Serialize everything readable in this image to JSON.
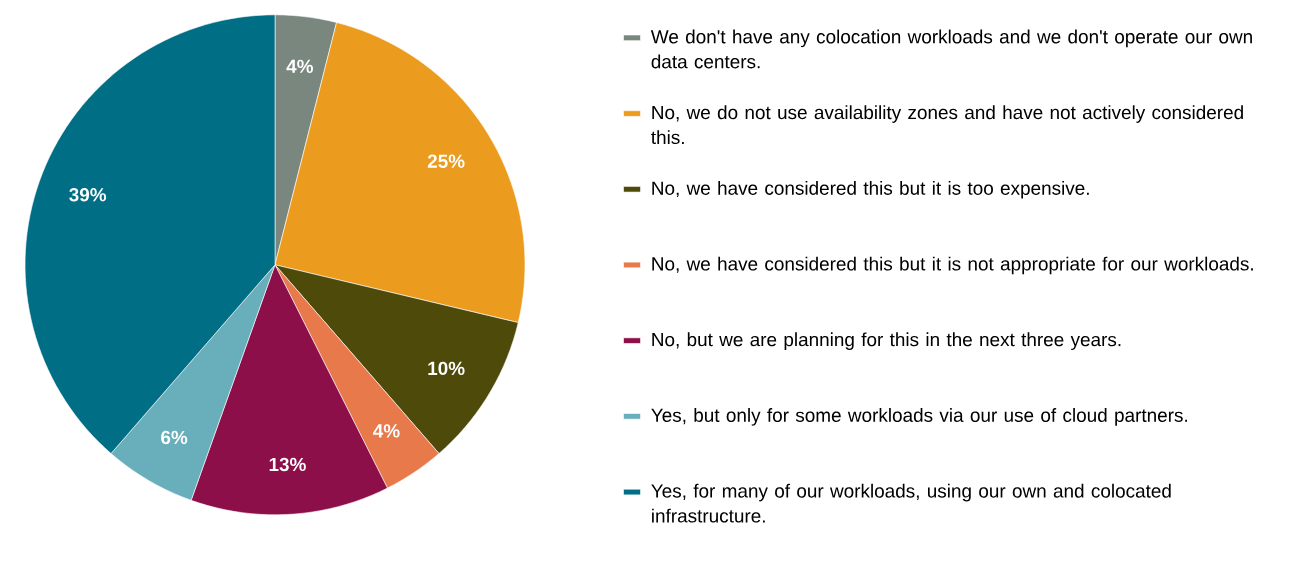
{
  "chart_data": {
    "type": "pie",
    "categories": [
      "We don't have any colocation workloads and we don't operate our own data centers.",
      "No, we do not use availability zones and have not actively considered this.",
      "No, we have considered this but it is too expensive.",
      "No, we have considered this but it is not appropriate for our workloads.",
      "No, but we are planning for this in the next three years.",
      "Yes, but only for some workloads via our use of cloud partners.",
      "Yes, for many of our workloads, using our own and colocated infrastructure."
    ],
    "values": [
      4,
      25,
      10,
      4,
      13,
      6,
      39
    ],
    "value_labels": [
      "4%",
      "25%",
      "10%",
      "4%",
      "13%",
      "6%",
      "39%"
    ],
    "colors": [
      "#7a877f",
      "#eb9c1e",
      "#4e4a0a",
      "#e8794b",
      "#8c0f4a",
      "#68aebb",
      "#006f86"
    ],
    "legend": "right"
  }
}
